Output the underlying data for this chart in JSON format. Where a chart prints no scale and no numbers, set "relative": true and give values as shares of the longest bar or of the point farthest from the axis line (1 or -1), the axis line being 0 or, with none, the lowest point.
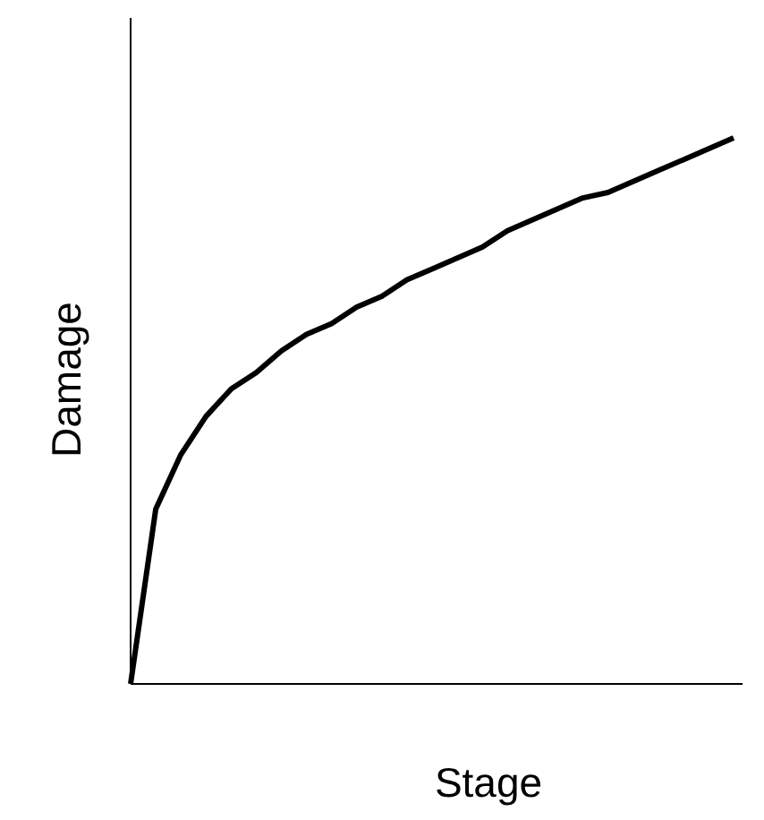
{
  "chart_data": {
    "type": "line",
    "relative": true,
    "xlabel": "Stage",
    "ylabel": "Damage",
    "color": "#000000",
    "marker": "none",
    "line_style": "solid",
    "categories": [
      null,
      null,
      null,
      null,
      null,
      null,
      null,
      null,
      null,
      null,
      null,
      null,
      null,
      null,
      null,
      null,
      null,
      null,
      null,
      null,
      null,
      null,
      null,
      null,
      null
    ],
    "values": [
      0,
      0.32,
      0.42,
      0.49,
      0.54,
      0.57,
      0.61,
      0.64,
      0.66,
      0.69,
      0.71,
      0.74,
      0.76,
      0.78,
      0.8,
      0.83,
      0.85,
      0.87,
      0.89,
      0.9,
      0.92,
      0.94,
      0.96,
      0.98,
      1
    ]
  }
}
